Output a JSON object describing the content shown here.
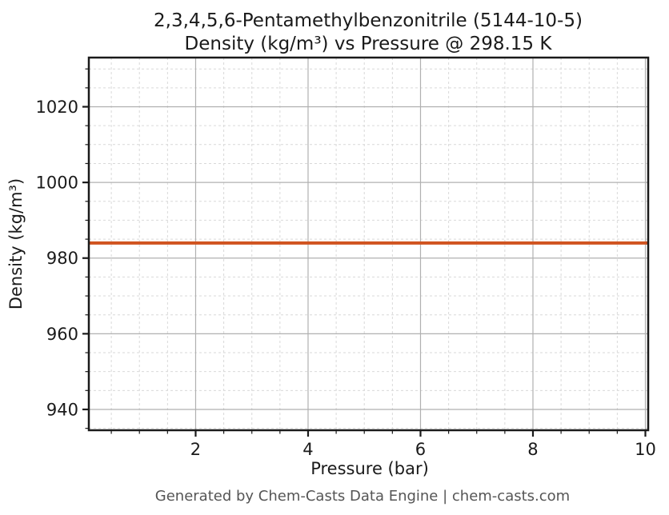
{
  "chart_data": {
    "type": "line",
    "title": "2,3,4,5,6-Pentamethylbenzonitrile (5144-10-5)",
    "subtitle": "Density (kg/m³) vs Pressure @ 298.15 K",
    "xlabel": "Pressure (bar)",
    "ylabel": "Density (kg/m³)",
    "footer": "Generated by Chem-Casts Data Engine | chem-casts.com",
    "xlim": [
      0.1,
      10.05
    ],
    "ylim": [
      934.5,
      1033
    ],
    "x_major_ticks": [
      2,
      4,
      6,
      8,
      10
    ],
    "x_minor_step": 0.5,
    "y_major_ticks": [
      940,
      960,
      980,
      1000,
      1020
    ],
    "y_minor_step": 5,
    "grid": {
      "major": "solid",
      "minor": "dashed",
      "enabled": true
    },
    "legend": "none",
    "series": [
      {
        "name": "Density",
        "x": [
          0.1,
          10.05
        ],
        "y": [
          984,
          984
        ],
        "color": "#d0531f",
        "line_width": 4
      }
    ],
    "colors": {
      "line": "#d0531f",
      "spine": "#1a1a1a",
      "major_grid": "#b0b0b0",
      "minor_grid": "#d9d9d9",
      "text": "#1a1a1a",
      "footer": "#555555",
      "background": "#ffffff"
    }
  }
}
